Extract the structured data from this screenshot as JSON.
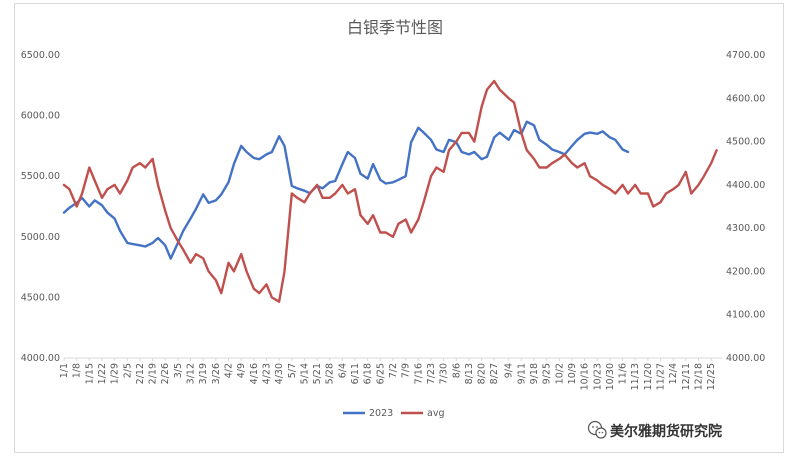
{
  "chart_data": {
    "type": "line",
    "title": "白银季节性图",
    "xlabel": "",
    "ylabel": "",
    "grid": false,
    "legend_position": "bottom",
    "x_ticks": [
      "1/1",
      "1/8",
      "1/15",
      "1/22",
      "1/29",
      "2/5",
      "2/12",
      "2/19",
      "2/26",
      "3/5",
      "3/12",
      "3/19",
      "3/26",
      "4/2",
      "4/9",
      "4/16",
      "4/23",
      "4/30",
      "5/7",
      "5/14",
      "5/21",
      "5/28",
      "6/4",
      "6/11",
      "6/18",
      "6/25",
      "7/2",
      "7/9",
      "7/16",
      "7/23",
      "7/30",
      "8/6",
      "8/13",
      "8/20",
      "8/27",
      "9/4",
      "9/11",
      "9/18",
      "9/25",
      "10/2",
      "10/9",
      "10/16",
      "10/23",
      "10/30",
      "11/6",
      "11/13",
      "11/20",
      "11/27",
      "12/4",
      "12/11",
      "12/18",
      "12/25"
    ],
    "y_left": {
      "min": 4000,
      "max": 6500,
      "ticks": [
        "4000.00",
        "4500.00",
        "5000.00",
        "5500.00",
        "6000.00",
        "6500.00"
      ]
    },
    "y_right": {
      "min": 4000,
      "max": 4700,
      "ticks": [
        "4000.00",
        "4100.00",
        "4200.00",
        "4300.00",
        "4400.00",
        "4500.00",
        "4600.00",
        "4700.00"
      ]
    },
    "series": [
      {
        "name": "2023",
        "axis": "left",
        "color": "#4472c4",
        "x": [
          "1/1",
          "1/4",
          "1/8",
          "1/11",
          "1/15",
          "1/18",
          "1/22",
          "1/25",
          "1/29",
          "2/1",
          "2/5",
          "2/8",
          "2/12",
          "2/15",
          "2/19",
          "2/22",
          "2/26",
          "3/1",
          "3/5",
          "3/8",
          "3/12",
          "3/15",
          "3/19",
          "3/22",
          "3/26",
          "3/29",
          "4/2",
          "4/5",
          "4/9",
          "4/12",
          "4/16",
          "4/19",
          "4/23",
          "4/26",
          "4/30",
          "5/3",
          "5/7",
          "5/10",
          "5/14",
          "5/17",
          "5/21",
          "5/24",
          "5/28",
          "5/31",
          "6/4",
          "6/7",
          "6/11",
          "6/14",
          "6/18",
          "6/21",
          "6/25",
          "6/28",
          "7/2",
          "7/5",
          "7/9",
          "7/12",
          "7/16",
          "7/19",
          "7/23",
          "7/26",
          "7/30",
          "8/2",
          "8/6",
          "8/9",
          "8/13",
          "8/16",
          "8/20",
          "8/23",
          "8/27",
          "8/30",
          "9/4",
          "9/7",
          "9/11",
          "9/14",
          "9/18",
          "9/21",
          "9/25",
          "9/28",
          "10/2",
          "10/5",
          "10/9",
          "10/12",
          "10/16",
          "10/19",
          "10/23",
          "10/26",
          "10/30",
          "11/2",
          "11/6",
          "11/9"
        ],
        "values": [
          5200,
          5240,
          5280,
          5320,
          5250,
          5300,
          5260,
          5200,
          5150,
          5050,
          4950,
          4940,
          4930,
          4920,
          4950,
          4990,
          4930,
          4820,
          4950,
          5050,
          5150,
          5230,
          5350,
          5280,
          5300,
          5350,
          5450,
          5600,
          5750,
          5700,
          5650,
          5640,
          5680,
          5700,
          5830,
          5750,
          5420,
          5400,
          5380,
          5360,
          5420,
          5400,
          5450,
          5460,
          5600,
          5700,
          5650,
          5520,
          5480,
          5600,
          5470,
          5440,
          5450,
          5470,
          5500,
          5780,
          5900,
          5860,
          5800,
          5720,
          5700,
          5800,
          5780,
          5700,
          5680,
          5700,
          5640,
          5660,
          5820,
          5860,
          5800,
          5880,
          5850,
          5950,
          5920,
          5800,
          5760,
          5720,
          5700,
          5680,
          5750,
          5800,
          5850,
          5860,
          5850,
          5870,
          5820,
          5800,
          5720,
          5700
        ]
      },
      {
        "name": "avg",
        "axis": "right",
        "color": "#c0504d",
        "x": [
          "1/1",
          "1/4",
          "1/8",
          "1/11",
          "1/15",
          "1/18",
          "1/22",
          "1/25",
          "1/29",
          "2/1",
          "2/5",
          "2/8",
          "2/12",
          "2/15",
          "2/19",
          "2/22",
          "2/26",
          "3/1",
          "3/5",
          "3/8",
          "3/12",
          "3/15",
          "3/19",
          "3/22",
          "3/26",
          "3/29",
          "4/2",
          "4/5",
          "4/9",
          "4/12",
          "4/16",
          "4/19",
          "4/23",
          "4/26",
          "4/30",
          "5/3",
          "5/7",
          "5/10",
          "5/14",
          "5/17",
          "5/21",
          "5/24",
          "5/28",
          "5/31",
          "6/4",
          "6/7",
          "6/11",
          "6/14",
          "6/18",
          "6/21",
          "6/25",
          "6/28",
          "7/2",
          "7/5",
          "7/9",
          "7/12",
          "7/16",
          "7/19",
          "7/23",
          "7/26",
          "7/30",
          "8/2",
          "8/6",
          "8/9",
          "8/13",
          "8/16",
          "8/20",
          "8/23",
          "8/27",
          "8/30",
          "9/4",
          "9/7",
          "9/11",
          "9/14",
          "9/18",
          "9/21",
          "9/25",
          "9/28",
          "10/2",
          "10/5",
          "10/9",
          "10/12",
          "10/16",
          "10/19",
          "10/23",
          "10/26",
          "10/30",
          "11/2",
          "11/6",
          "11/9",
          "11/13",
          "11/16",
          "11/20",
          "11/23",
          "11/27",
          "11/30",
          "12/4",
          "12/7",
          "12/11",
          "12/14",
          "12/18",
          "12/21",
          "12/25",
          "12/28"
        ],
        "values": [
          4400,
          4390,
          4350,
          4380,
          4440,
          4410,
          4370,
          4390,
          4400,
          4380,
          4410,
          4440,
          4450,
          4440,
          4460,
          4400,
          4340,
          4300,
          4270,
          4250,
          4220,
          4240,
          4230,
          4200,
          4180,
          4150,
          4220,
          4200,
          4240,
          4200,
          4160,
          4150,
          4170,
          4140,
          4130,
          4200,
          4380,
          4370,
          4360,
          4380,
          4400,
          4370,
          4370,
          4380,
          4400,
          4380,
          4390,
          4330,
          4310,
          4330,
          4290,
          4290,
          4280,
          4310,
          4320,
          4290,
          4320,
          4360,
          4420,
          4440,
          4430,
          4480,
          4500,
          4520,
          4520,
          4500,
          4580,
          4620,
          4640,
          4620,
          4600,
          4590,
          4520,
          4480,
          4460,
          4440,
          4440,
          4450,
          4460,
          4470,
          4450,
          4440,
          4450,
          4420,
          4410,
          4400,
          4390,
          4380,
          4400,
          4380,
          4400,
          4380,
          4380,
          4350,
          4360,
          4380,
          4390,
          4400,
          4430,
          4380,
          4400,
          4420,
          4450,
          4480
        ]
      }
    ]
  },
  "watermark": {
    "icon": "wechat-icon",
    "text": "美尔雅期货研究院"
  }
}
